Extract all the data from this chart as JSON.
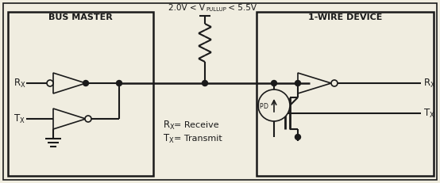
{
  "bg_color": "#f0ede0",
  "line_color": "#1a1a1a",
  "figsize": [
    5.54,
    2.31
  ],
  "dpi": 100,
  "title_bus_master": "BUS MASTER",
  "title_1wire": "1-WIRE DEVICE",
  "legend_rx_text": "= Receive",
  "legend_tx_text": "= Transmit"
}
